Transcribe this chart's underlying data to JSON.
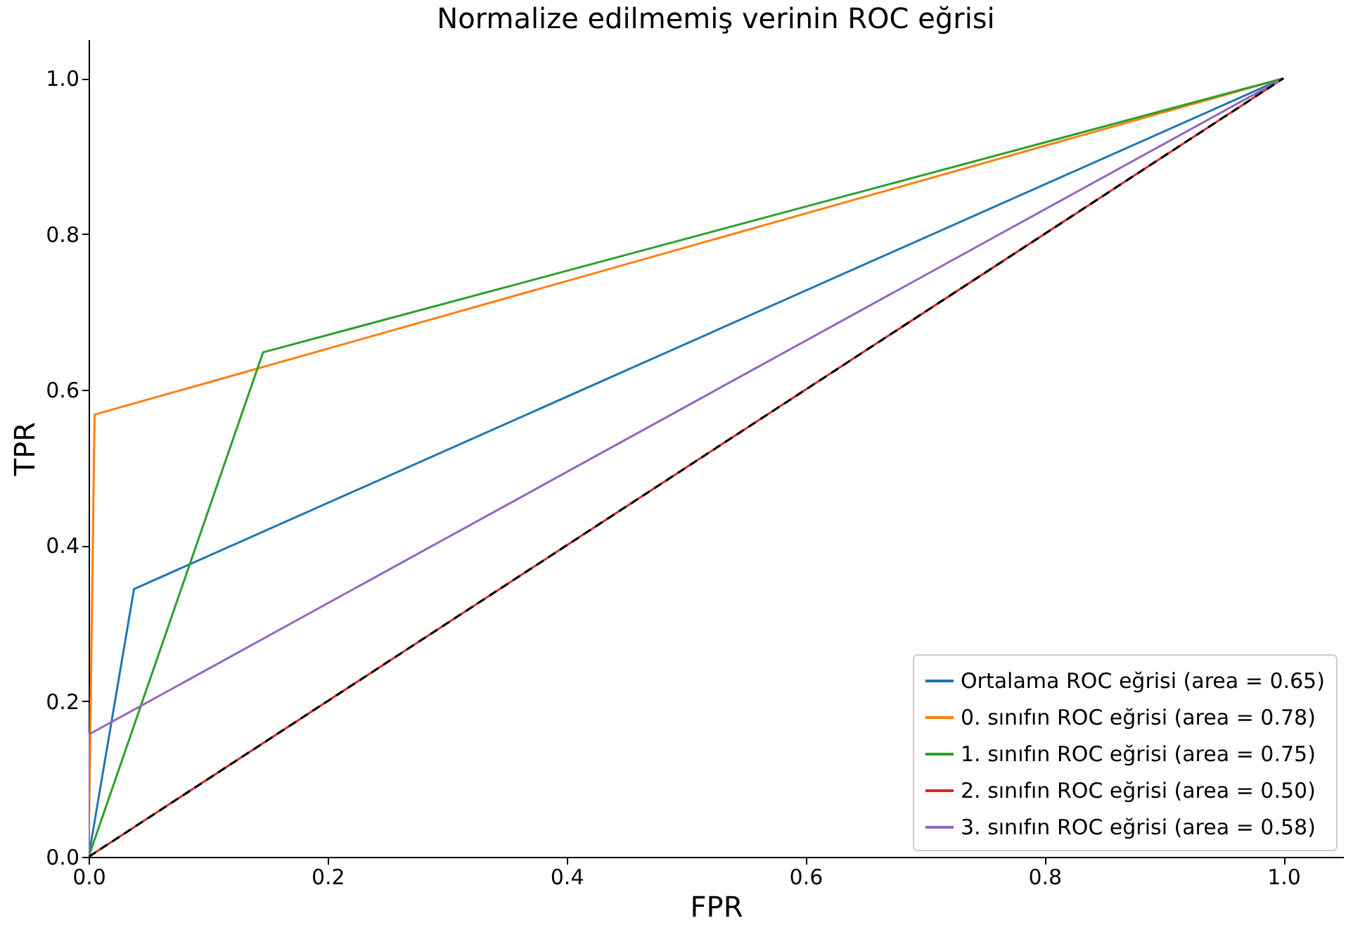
{
  "chart_data": {
    "type": "line",
    "title": "Normalize edilmemiş verinin ROC eğrisi",
    "xlabel": "FPR",
    "ylabel": "TPR",
    "xlim": [
      0,
      1.05
    ],
    "ylim": [
      0,
      1.05
    ],
    "xticks": [
      {
        "value": 0,
        "label": "0.0"
      },
      {
        "value": 0.2,
        "label": "0.2"
      },
      {
        "value": 0.4,
        "label": "0.4"
      },
      {
        "value": 0.6,
        "label": "0.6"
      },
      {
        "value": 0.8,
        "label": "0.8"
      },
      {
        "value": 1,
        "label": "1.0"
      }
    ],
    "yticks": [
      {
        "value": 0,
        "label": "0.0"
      },
      {
        "value": 0.2,
        "label": "0.2"
      },
      {
        "value": 0.4,
        "label": "0.4"
      },
      {
        "value": 0.6,
        "label": "0.6"
      },
      {
        "value": 0.8,
        "label": "0.8"
      },
      {
        "value": 1,
        "label": "1.0"
      }
    ],
    "grid": false,
    "legend": "bottom right",
    "marker": "none",
    "series": [
      {
        "name": "Ortalama ROC eğrisi (area = 0.65)",
        "color": "#1f77b4",
        "x": [
          0,
          0.038,
          1
        ],
        "values": [
          0,
          0.344,
          1
        ]
      },
      {
        "name": "0. sınıfın ROC eğrisi (area = 0.78)",
        "color": "#ff7f0e",
        "x": [
          0,
          0.005,
          1
        ],
        "values": [
          0,
          0.568,
          1
        ]
      },
      {
        "name": "1. sınıfın ROC eğrisi (area = 0.75)",
        "color": "#2ca02c",
        "x": [
          0,
          0.146,
          1
        ],
        "values": [
          0,
          0.648,
          1
        ]
      },
      {
        "name": "2. sınıfın ROC eğrisi (area = 0.50)",
        "color": "#d62728",
        "x": [
          0,
          1
        ],
        "values": [
          0,
          1
        ]
      },
      {
        "name": "3. sınıfın ROC eğrisi (area = 0.58)",
        "color": "#9467bd",
        "x": [
          0,
          0,
          1
        ],
        "values": [
          0,
          0.157,
          1
        ]
      },
      {
        "color": "#000000",
        "x": [
          0,
          1
        ],
        "values": [
          0,
          1
        ],
        "line_style": "dashed"
      }
    ]
  }
}
